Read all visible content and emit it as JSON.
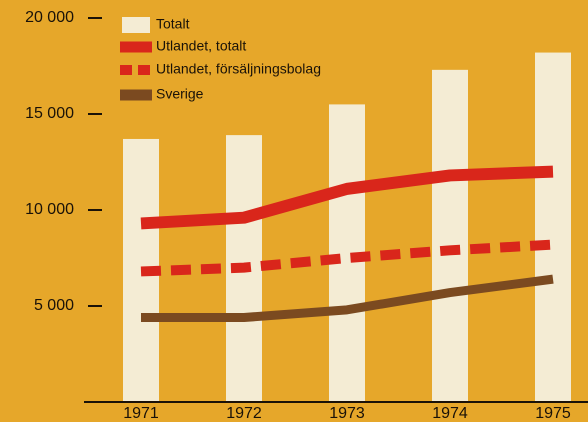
{
  "chart_data": {
    "type": "combo",
    "categories": [
      "1971",
      "1972",
      "1973",
      "1974",
      "1975"
    ],
    "series": [
      {
        "name": "Totalt",
        "type": "bar",
        "color": "#f4ecd4",
        "values": [
          13700,
          13900,
          15500,
          17300,
          18200
        ]
      },
      {
        "name": "Utlandet, totalt",
        "type": "line",
        "color": "#d9261b",
        "values": [
          9300,
          9600,
          11100,
          11800,
          12000
        ]
      },
      {
        "name": "Utlandet, försäljningsbolag",
        "type": "line",
        "dashed": true,
        "color": "#d9261b",
        "values": [
          6800,
          7000,
          7500,
          7900,
          8200
        ]
      },
      {
        "name": "Sverige",
        "type": "line",
        "color": "#7b4a20",
        "values": [
          4400,
          4400,
          4800,
          5700,
          6400
        ]
      }
    ],
    "ylim": [
      0,
      20000
    ],
    "yticks": [
      {
        "value": 5000,
        "label": "5 000"
      },
      {
        "value": 10000,
        "label": "10 000"
      },
      {
        "value": 15000,
        "label": "15 000"
      },
      {
        "value": 20000,
        "label": "20 000"
      }
    ]
  }
}
